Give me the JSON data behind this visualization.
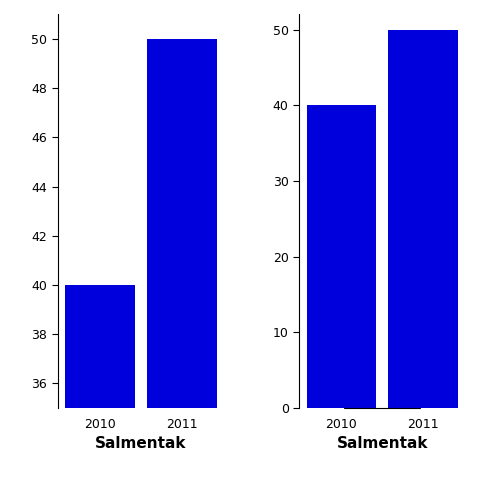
{
  "categories": [
    "2010",
    "2011"
  ],
  "values": [
    40,
    50
  ],
  "bar_color": "#0000DD",
  "xlabel": "Salmentak",
  "left_ylim": [
    35,
    51
  ],
  "left_yticks": [
    36,
    38,
    40,
    42,
    44,
    46,
    48,
    50
  ],
  "right_ylim": [
    0,
    52
  ],
  "right_yticks": [
    0,
    10,
    20,
    30,
    40,
    50
  ],
  "background_color": "#ffffff",
  "bar_width": 0.85,
  "figsize": [
    4.8,
    4.8
  ],
  "dpi": 100
}
